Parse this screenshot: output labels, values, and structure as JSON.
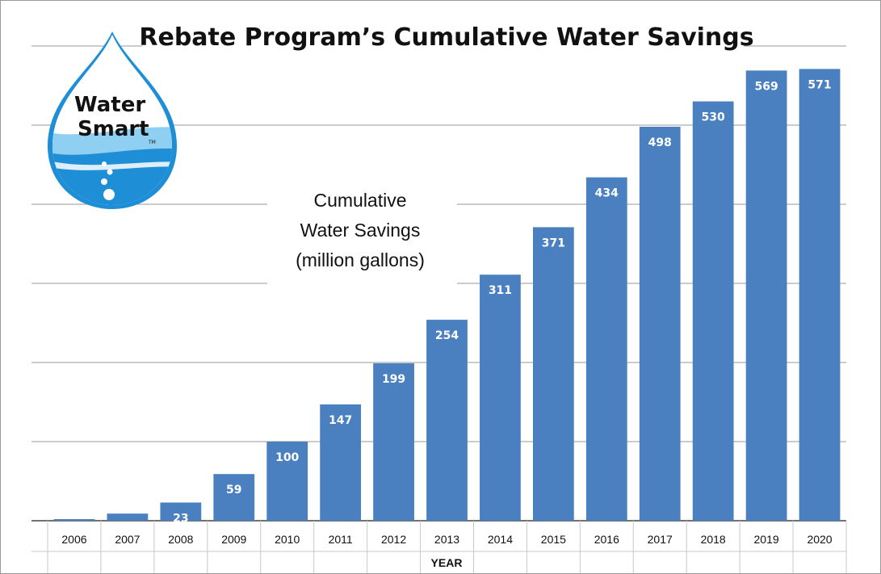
{
  "chart_data": {
    "type": "bar",
    "title": "Rebate Program’s Cumulative Water Savings",
    "ylabel_lines": [
      "Cumulative",
      "Water Savings",
      "(million gallons)"
    ],
    "xlabel": "YEAR",
    "categories": [
      "2006",
      "2007",
      "2008",
      "2009",
      "2010",
      "2011",
      "2012",
      "2013",
      "2014",
      "2015",
      "2016",
      "2017",
      "2018",
      "2019",
      "2020"
    ],
    "values": [
      2,
      9,
      23,
      59,
      100,
      147,
      199,
      254,
      311,
      371,
      434,
      498,
      530,
      569,
      571
    ],
    "data_labels": [
      "",
      "",
      "23",
      "59",
      "100",
      "147",
      "199",
      "254",
      "311",
      "371",
      "434",
      "498",
      "530",
      "569",
      "571"
    ],
    "ylim": [
      0,
      600
    ],
    "grid": true,
    "bar_color": "#4a80c0",
    "gridline_color": "#9a9a9a"
  },
  "logo": {
    "line1": "Water",
    "line2": "Smart",
    "tm": "TM",
    "drop_color": "#1e8fd6",
    "light_blue": "#8fd0f2"
  }
}
